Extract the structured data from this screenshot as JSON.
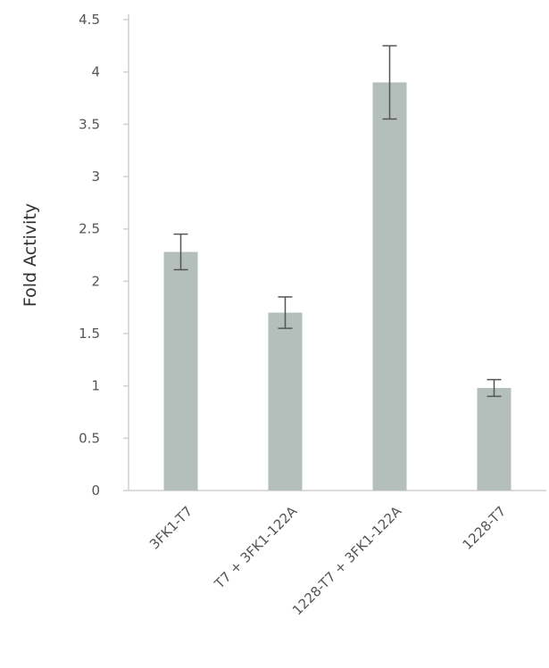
{
  "chart_data": {
    "type": "bar",
    "title": "",
    "xlabel": "",
    "ylabel": "Fold Activity",
    "ylim": [
      0,
      4.5
    ],
    "yticks": [
      "0",
      "0.5",
      "1",
      "1.5",
      "2",
      "2.5",
      "3",
      "3.5",
      "4",
      "4.5"
    ],
    "grid": false,
    "categories": [
      "3FK1-T7",
      "T7 + 3FK1-122A",
      "1228-T7 + 3FK1-122A",
      "1228-T7"
    ],
    "values": [
      2.28,
      1.7,
      3.9,
      0.98
    ],
    "errors": [
      0.17,
      0.15,
      0.35,
      0.08
    ],
    "colors": {
      "bar": "#b4bfbc",
      "error": "#555555",
      "axis": "#d0d0d0"
    }
  }
}
